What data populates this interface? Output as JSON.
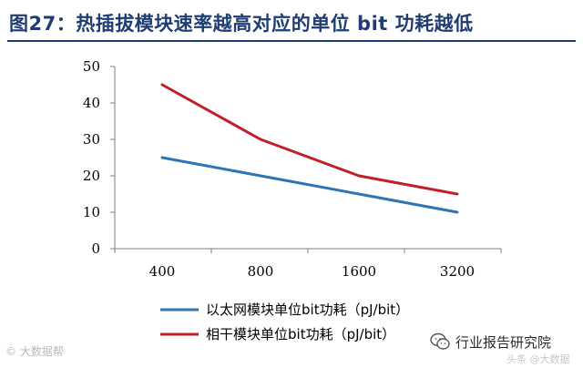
{
  "figure": {
    "title": "图27：热插拔模块速率越高对应的单位 bit 功耗越低"
  },
  "colors": {
    "title": "#1f3d73",
    "series_ethernet": "#2e75b6",
    "series_coherent": "#c0202a",
    "axis": "#7f7f7f"
  },
  "chart_data": {
    "type": "line",
    "x": [
      "400",
      "800",
      "1600",
      "3200"
    ],
    "ylim": [
      0,
      50
    ],
    "yticks": [
      0,
      10,
      20,
      30,
      40,
      50
    ],
    "grid": false,
    "legend_position": "bottom",
    "series": [
      {
        "name": "以太网模块单位bit功耗（pJ/bit）",
        "values": [
          25,
          20,
          15,
          10
        ]
      },
      {
        "name": "相干模块单位bit功耗（pJ/bit）",
        "values": [
          45,
          30,
          20,
          15
        ]
      }
    ]
  },
  "footer": {
    "watermark_left": "© 大数据帮",
    "source_account": "行业报告研究院",
    "watermark_sub": "头条 @大数据"
  }
}
